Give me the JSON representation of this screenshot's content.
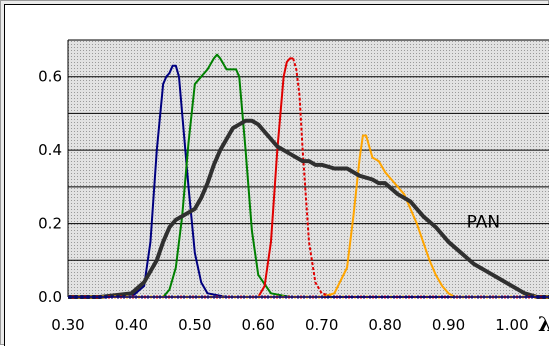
{
  "chart_data": {
    "type": "line",
    "xlabel": "λ",
    "x_ticks": [
      "0.30",
      "0.40",
      "0.50",
      "0.60",
      "0.70",
      "0.80",
      "0.90",
      "1.00"
    ],
    "x_tick_values": [
      0.3,
      0.4,
      0.5,
      0.6,
      0.7,
      0.8,
      0.9,
      1.0
    ],
    "y_ticks": [
      "0.0",
      "0.2",
      "0.4",
      "0.6"
    ],
    "y_tick_values": [
      0.0,
      0.2,
      0.4,
      0.6
    ],
    "xlim": [
      0.3,
      1.06
    ],
    "ylim": [
      0.0,
      0.7
    ],
    "grid": true,
    "legend": "none",
    "annotations": [
      {
        "text": "PAN",
        "x": 0.955,
        "y": 0.205
      }
    ],
    "series": [
      {
        "color": "#000080",
        "x": [
          0.3,
          0.4,
          0.42,
          0.43,
          0.44,
          0.45,
          0.455,
          0.46,
          0.465,
          0.47,
          0.475,
          0.48,
          0.49,
          0.5,
          0.51,
          0.52,
          0.55,
          0.6,
          0.7,
          0.8,
          1.06
        ],
        "y": [
          0.0,
          0.0,
          0.03,
          0.15,
          0.4,
          0.58,
          0.6,
          0.61,
          0.63,
          0.63,
          0.6,
          0.5,
          0.3,
          0.12,
          0.04,
          0.01,
          0.0,
          0.0,
          0.0,
          0.0,
          0.0
        ]
      },
      {
        "color": "#008000",
        "x": [
          0.3,
          0.45,
          0.46,
          0.47,
          0.48,
          0.49,
          0.5,
          0.51,
          0.52,
          0.53,
          0.535,
          0.54,
          0.55,
          0.56,
          0.565,
          0.57,
          0.575,
          0.58,
          0.59,
          0.6,
          0.62,
          0.65,
          0.7,
          1.06
        ],
        "y": [
          0.0,
          0.0,
          0.02,
          0.08,
          0.22,
          0.42,
          0.58,
          0.6,
          0.62,
          0.65,
          0.66,
          0.65,
          0.62,
          0.62,
          0.62,
          0.6,
          0.5,
          0.4,
          0.18,
          0.06,
          0.01,
          0.0,
          0.0,
          0.0
        ]
      },
      {
        "color": "#e00000",
        "x": [
          0.3,
          0.6,
          0.61,
          0.62,
          0.63,
          0.64,
          0.645,
          0.65,
          0.655,
          0.66,
          0.665,
          0.67,
          0.68,
          0.69,
          0.7,
          0.72,
          0.8,
          1.06
        ],
        "y": [
          0.0,
          0.0,
          0.03,
          0.15,
          0.4,
          0.6,
          0.64,
          0.65,
          0.65,
          0.62,
          0.55,
          0.4,
          0.15,
          0.04,
          0.01,
          0.0,
          0.0,
          0.0
        ],
        "dashed_from_x": 0.655
      },
      {
        "color": "#ffa500",
        "x": [
          0.3,
          0.7,
          0.72,
          0.74,
          0.75,
          0.76,
          0.765,
          0.77,
          0.78,
          0.79,
          0.8,
          0.81,
          0.82,
          0.83,
          0.84,
          0.85,
          0.86,
          0.87,
          0.88,
          0.89,
          0.9,
          0.91,
          0.92,
          1.06
        ],
        "y": [
          0.0,
          0.0,
          0.01,
          0.08,
          0.22,
          0.38,
          0.44,
          0.44,
          0.38,
          0.37,
          0.34,
          0.32,
          0.3,
          0.28,
          0.24,
          0.2,
          0.15,
          0.1,
          0.06,
          0.03,
          0.01,
          0.0,
          0.0,
          0.0
        ]
      },
      {
        "name": "PAN",
        "color": "#303030",
        "x": [
          0.3,
          0.35,
          0.4,
          0.42,
          0.44,
          0.45,
          0.46,
          0.47,
          0.48,
          0.49,
          0.5,
          0.51,
          0.52,
          0.53,
          0.54,
          0.55,
          0.56,
          0.57,
          0.58,
          0.59,
          0.6,
          0.61,
          0.62,
          0.63,
          0.64,
          0.65,
          0.66,
          0.67,
          0.68,
          0.69,
          0.7,
          0.72,
          0.74,
          0.76,
          0.78,
          0.79,
          0.8,
          0.82,
          0.84,
          0.86,
          0.88,
          0.9,
          0.92,
          0.94,
          0.96,
          0.98,
          1.0,
          1.02,
          1.04,
          1.06
        ],
        "y": [
          0.0,
          0.0,
          0.01,
          0.04,
          0.1,
          0.15,
          0.19,
          0.21,
          0.22,
          0.23,
          0.24,
          0.27,
          0.31,
          0.36,
          0.4,
          0.43,
          0.46,
          0.47,
          0.48,
          0.48,
          0.47,
          0.45,
          0.43,
          0.41,
          0.4,
          0.39,
          0.38,
          0.37,
          0.37,
          0.36,
          0.36,
          0.35,
          0.35,
          0.33,
          0.32,
          0.31,
          0.31,
          0.28,
          0.26,
          0.22,
          0.19,
          0.15,
          0.12,
          0.09,
          0.07,
          0.05,
          0.03,
          0.01,
          0.0,
          0.0
        ]
      }
    ]
  }
}
